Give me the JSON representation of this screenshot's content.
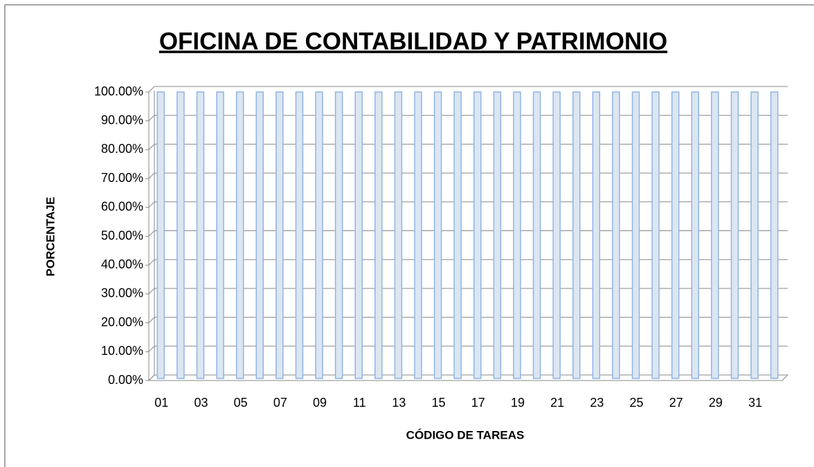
{
  "chart_data": {
    "type": "bar",
    "title": "OFICINA DE CONTABILIDAD Y PATRIMONIO",
    "x_label": "CÓDIGO DE TAREAS",
    "y_label": "PORCENTAJE",
    "categories": [
      "01",
      null,
      "03",
      null,
      "05",
      null,
      "07",
      null,
      "09",
      null,
      "11",
      null,
      "13",
      null,
      "15",
      null,
      "17",
      null,
      "19",
      null,
      "21",
      null,
      "23",
      null,
      "25",
      null,
      "27",
      null,
      "29",
      null,
      "31",
      null
    ],
    "values": [
      100,
      100,
      100,
      100,
      100,
      100,
      100,
      100,
      100,
      100,
      100,
      100,
      100,
      100,
      100,
      100,
      100,
      100,
      100,
      100,
      100,
      100,
      100,
      100,
      100,
      100,
      100,
      100,
      100,
      100,
      100,
      100
    ],
    "color": "#dce6f2",
    "ylim": [
      0,
      100
    ],
    "yticks": [
      {
        "value": 0,
        "label": "0.00%"
      },
      {
        "value": 10,
        "label": "10.00%"
      },
      {
        "value": 20,
        "label": "20.00%"
      },
      {
        "value": 30,
        "label": "30.00%"
      },
      {
        "value": 40,
        "label": "40.00%"
      },
      {
        "value": 50,
        "label": "50.00%"
      },
      {
        "value": 60,
        "label": "60.00%"
      },
      {
        "value": 70,
        "label": "70.00%"
      },
      {
        "value": 80,
        "label": "80.00%"
      },
      {
        "value": 90,
        "label": "90.00%"
      },
      {
        "value": 100,
        "label": "100.00%"
      }
    ],
    "grid": true
  }
}
